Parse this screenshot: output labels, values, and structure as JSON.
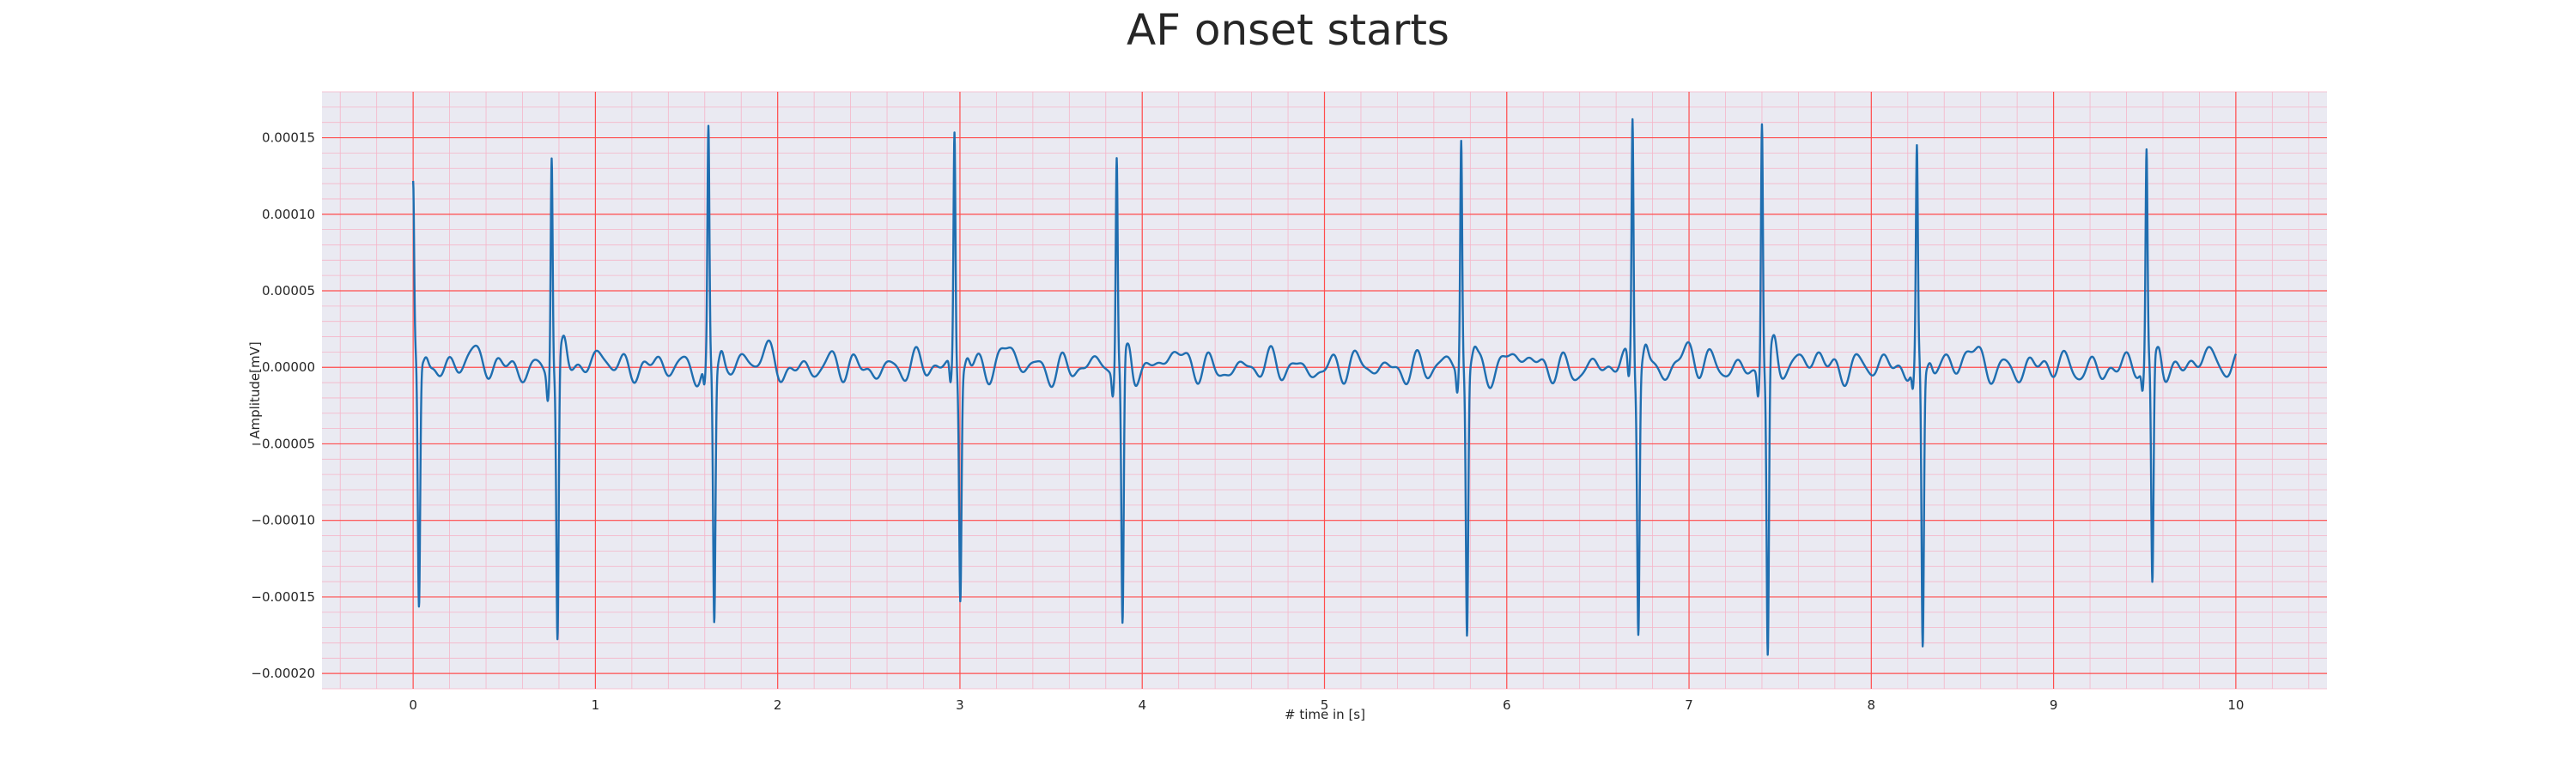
{
  "chart_data": {
    "type": "line",
    "title": "AF onset starts",
    "xlabel": "# time in [s]",
    "ylabel": "Amplitude[mV]",
    "xlim": [
      -0.5,
      10.5
    ],
    "ylim": [
      -0.00021,
      0.00018
    ],
    "x_ticks": [
      0,
      1,
      2,
      3,
      4,
      5,
      6,
      7,
      8,
      9,
      10
    ],
    "x_tick_labels": [
      "0",
      "1",
      "2",
      "3",
      "4",
      "5",
      "6",
      "7",
      "8",
      "9",
      "10"
    ],
    "y_ticks": [
      0.00015,
      0.0001,
      5e-05,
      0.0,
      -5e-05,
      -0.0001,
      -0.00015,
      -0.0002
    ],
    "y_tick_labels": [
      "0.00015",
      "0.00010",
      "0.00005",
      "0.00000",
      "−0.00005",
      "−0.00010",
      "−0.00015",
      "−0.00020"
    ],
    "grid": true,
    "colors": {
      "background": "#eaeaf2",
      "major_grid": "#ff4d4d",
      "minor_grid": "#f5b5c8",
      "line": "#1f6eb0"
    },
    "series": [
      {
        "x_start": 0,
        "x_end": 10,
        "beats": [
          {
            "t": 0.0,
            "r": 0.000113,
            "s": -0.000163
          },
          {
            "t": 0.76,
            "r": 0.000146,
            "s": -0.000182
          },
          {
            "t": 1.62,
            "r": 0.000151,
            "s": -0.000165
          },
          {
            "t": 2.97,
            "r": 0.000154,
            "s": -0.000147
          },
          {
            "t": 3.86,
            "r": 0.00014,
            "s": -0.000176
          },
          {
            "t": 5.75,
            "r": 0.00015,
            "s": -0.000173
          },
          {
            "t": 6.69,
            "r": 0.000166,
            "s": -0.000166
          },
          {
            "t": 7.4,
            "r": 0.000166,
            "s": -0.000193
          },
          {
            "t": 8.25,
            "r": 0.000137,
            "s": -0.000184
          },
          {
            "t": 9.51,
            "r": 0.000138,
            "s": -0.000149
          }
        ]
      }
    ]
  }
}
